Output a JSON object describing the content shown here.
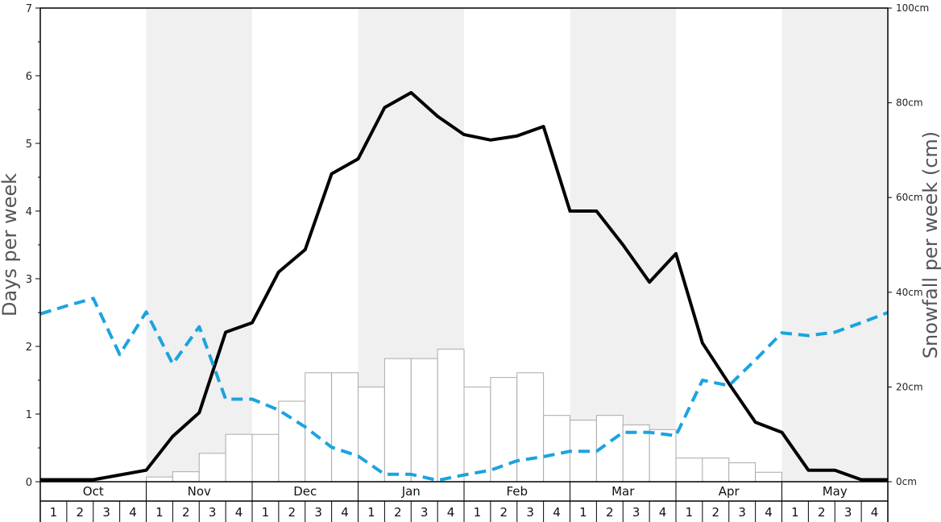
{
  "chart_data": {
    "type": "bar+line",
    "ylabel_left": "Days per week",
    "ylabel_right": "Snowfall per week (cm)",
    "ylim_left": [
      0,
      7
    ],
    "ylim_right": [
      0,
      100
    ],
    "left_ticks": [
      "0",
      "1",
      "2",
      "3",
      "4",
      "5",
      "6",
      "7"
    ],
    "right_ticks": [
      "0cm",
      "20cm",
      "40cm",
      "60cm",
      "80cm",
      "100cm"
    ],
    "months": [
      "Oct",
      "Nov",
      "Dec",
      "Jan",
      "Feb",
      "Mar",
      "Apr",
      "May"
    ],
    "weeks": [
      "1",
      "2",
      "3",
      "4"
    ],
    "shaded_months": [
      "Nov",
      "Jan",
      "Mar",
      "May"
    ],
    "grid": false,
    "colors": {
      "solid_line": "#000000",
      "dashed_line": "#1ba3e0",
      "bars_fill": "#ffffff",
      "bars_stroke": "#aaaaaa",
      "shade": "#f0f0f0"
    },
    "series": [
      {
        "style": "bars",
        "axis": "right",
        "values": [
          0,
          0,
          0,
          0,
          1,
          2.1,
          6,
          10,
          10,
          17,
          23,
          23,
          20,
          26,
          26,
          28,
          20,
          22,
          23,
          14,
          13,
          14,
          12,
          11,
          5,
          5,
          4,
          2,
          0,
          0,
          0,
          0
        ]
      },
      {
        "style": "solid-line",
        "axis": "left",
        "values": [
          0.03,
          0.03,
          0.03,
          0.1,
          0.17,
          0.67,
          1.02,
          2.21,
          2.35,
          3.1,
          3.43,
          4.55,
          4.77,
          5.53,
          5.75,
          5.4,
          5.13,
          5.05,
          5.11,
          5.25,
          4.0,
          4.0,
          3.5,
          2.95,
          3.37,
          2.05,
          1.45,
          0.88,
          0.73,
          0.17,
          0.17,
          0.03,
          0.03
        ]
      },
      {
        "style": "dashed-line",
        "axis": "left",
        "values": [
          2.48,
          2.6,
          2.71,
          1.88,
          2.51,
          1.74,
          2.29,
          1.22,
          1.22,
          1.06,
          0.81,
          0.51,
          0.38,
          0.11,
          0.11,
          0.02,
          0.1,
          0.17,
          0.31,
          0.37,
          0.45,
          0.45,
          0.73,
          0.73,
          0.68,
          1.5,
          1.42,
          1.8,
          2.2,
          2.16,
          2.21,
          2.35,
          2.5
        ]
      }
    ]
  }
}
